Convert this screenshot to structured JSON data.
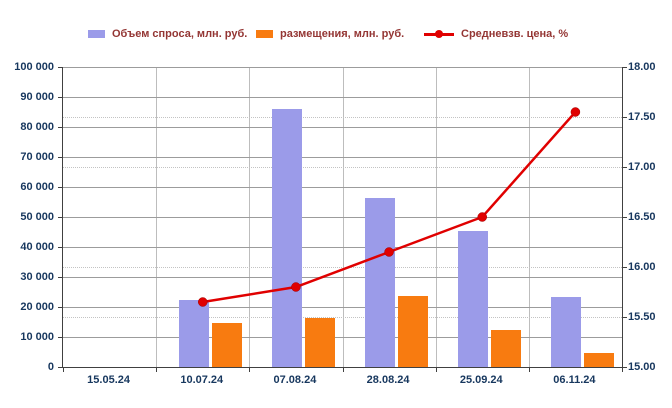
{
  "legend": [
    {
      "label": "Объем спроса, млн. руб.",
      "swatch": "bar",
      "color": "#9b9be9"
    },
    {
      "label": "размещения, млн. руб.",
      "swatch": "bar",
      "color": "#f87b10"
    },
    {
      "label": "Средневзв. цена, %",
      "swatch": "line",
      "color": "#e00000"
    }
  ],
  "colors": {
    "demand_bar": "#9b9be9",
    "placement_bar": "#f87b10",
    "price_line": "#e00000",
    "axis_text": "#17375e",
    "legend_text": "#943634",
    "gridline": "#9c9c9c"
  },
  "chart_data": {
    "type": "bar",
    "subtype": "clustered bars with secondary-axis line",
    "title": "",
    "categories": [
      "15.05.24",
      "10.07.24",
      "07.08.24",
      "28.08.24",
      "25.09.24",
      "06.11.24"
    ],
    "series": [
      {
        "name": "Объем спроса, млн. руб.",
        "type": "bar",
        "axis": "left",
        "color": "#9b9be9",
        "values": [
          null,
          22500,
          86000,
          56500,
          45500,
          23500
        ]
      },
      {
        "name": "размещения, млн. руб.",
        "type": "bar",
        "axis": "left",
        "color": "#f87b10",
        "values": [
          null,
          14800,
          16500,
          23800,
          12300,
          4800
        ]
      },
      {
        "name": "Средневзв. цена, %",
        "type": "line",
        "axis": "right",
        "color": "#e00000",
        "values": [
          null,
          15.65,
          15.8,
          16.15,
          16.5,
          17.55
        ]
      }
    ],
    "left_axis": {
      "min": 0,
      "max": 100000,
      "step": 10000,
      "labels": [
        "0",
        "10 000",
        "20 000",
        "30 000",
        "40 000",
        "50 000",
        "60 000",
        "70 000",
        "80 000",
        "90 000",
        "100 000"
      ]
    },
    "right_axis": {
      "min": 15.0,
      "max": 18.0,
      "step": 0.5,
      "labels": [
        "15.00",
        "15.50",
        "16.00",
        "16.50",
        "17.00",
        "17.50",
        "18.00"
      ]
    },
    "grid": true,
    "legend_position": "top"
  }
}
